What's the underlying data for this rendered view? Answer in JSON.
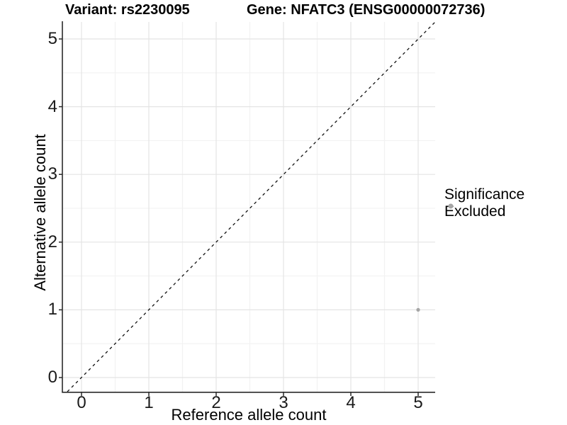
{
  "title": {
    "variant": "Variant: rs2230095",
    "gene": "Gene: NFATC3 (ENSG00000072736)"
  },
  "axes": {
    "x": {
      "label": "Reference allele count",
      "ticks": [
        "0",
        "1",
        "2",
        "3",
        "4",
        "5"
      ]
    },
    "y": {
      "label": "Alternative allele count",
      "ticks": [
        "0",
        "1",
        "2",
        "3",
        "4",
        "5"
      ]
    }
  },
  "legend": {
    "title": "Significance",
    "items": [
      {
        "label": "Excluded",
        "color": "#a5a5a5"
      }
    ]
  },
  "colors": {
    "background": "#ffffff",
    "major_grid": "#e4e4e4",
    "minor_grid": "#f2f2f2",
    "axis_line": "#2a2a2a",
    "identity_line": "#111111",
    "point": "#a5a5a5"
  },
  "chart_data": {
    "type": "scatter",
    "title": "Variant: rs2230095   Gene: NFATC3 (ENSG00000072736)",
    "xlabel": "Reference allele count",
    "ylabel": "Alternative allele count",
    "xlim": [
      -0.25,
      5.25
    ],
    "ylim": [
      -0.25,
      5.25
    ],
    "xticks": [
      0,
      1,
      2,
      3,
      4,
      5
    ],
    "yticks": [
      0,
      1,
      2,
      3,
      4,
      5
    ],
    "grid": true,
    "legend_position": "right",
    "reference_line": {
      "type": "identity y=x",
      "style": "dashed",
      "color": "#111111"
    },
    "series": [
      {
        "name": "Excluded",
        "color": "#a5a5a5",
        "points": [
          {
            "x": 5,
            "y": 1
          }
        ]
      }
    ]
  }
}
